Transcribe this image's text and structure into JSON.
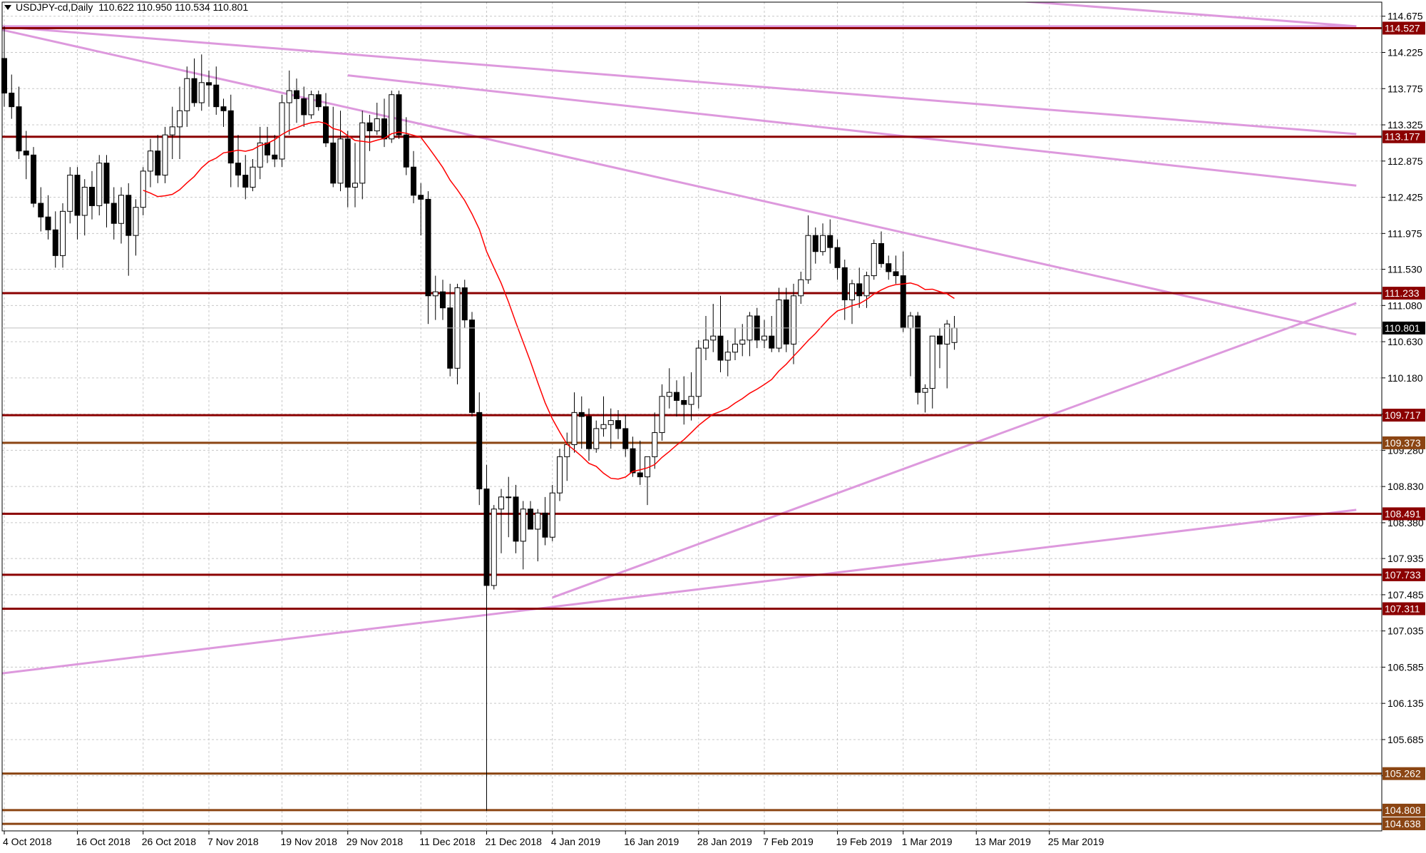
{
  "header": {
    "symbol_timeframe": "USDJPY-cd,Daily",
    "ohlc": "110.622 110.950 110.534 110.801"
  },
  "chart_data": {
    "type": "candlestick",
    "title": "USDJPY-cd,Daily",
    "xlabel": "",
    "ylabel": "",
    "ylim": [
      104.55,
      114.85
    ],
    "grid": true,
    "price_ticks": [
      "114.675",
      "114.225",
      "113.775",
      "113.325",
      "112.875",
      "112.425",
      "111.975",
      "111.530",
      "111.080",
      "110.630",
      "110.180",
      "109.730",
      "109.280",
      "108.830",
      "108.380",
      "107.935",
      "107.485",
      "107.035",
      "106.585",
      "106.135",
      "105.685",
      "105.235"
    ],
    "date_labels": [
      "4 Oct 2018",
      "16 Oct 2018",
      "26 Oct 2018",
      "7 Nov 2018",
      "19 Nov 2018",
      "29 Nov 2018",
      "11 Dec 2018",
      "21 Dec 2018",
      "4 Jan 2019",
      "16 Jan 2019",
      "28 Jan 2019",
      "7 Feb 2019",
      "19 Feb 2019",
      "1 Mar 2019",
      "13 Mar 2019",
      "25 Mar 2019"
    ],
    "date_label_bars": [
      0,
      10,
      19,
      28,
      38,
      47,
      57,
      66,
      75,
      85,
      95,
      104,
      114,
      123,
      133,
      143
    ],
    "current_price": "110.801",
    "horizontal_levels": [
      {
        "label": "114.527",
        "value": 114.527,
        "color": "#8b0000"
      },
      {
        "label": "113.177",
        "value": 113.177,
        "color": "#8b0000"
      },
      {
        "label": "111.233",
        "value": 111.233,
        "color": "#8b0000"
      },
      {
        "label": "109.717",
        "value": 109.717,
        "color": "#8b0000"
      },
      {
        "label": "109.373",
        "value": 109.373,
        "color": "#8b4513"
      },
      {
        "label": "108.491",
        "value": 108.491,
        "color": "#8b0000"
      },
      {
        "label": "107.733",
        "value": 107.733,
        "color": "#8b0000"
      },
      {
        "label": "107.311",
        "value": 107.311,
        "color": "#8b0000"
      },
      {
        "label": "105.262",
        "value": 105.262,
        "color": "#8b4513"
      },
      {
        "label": "104.808",
        "value": 104.808,
        "color": "#8b4513"
      },
      {
        "label": "104.638",
        "value": 104.638,
        "color": "#8b4513"
      }
    ],
    "trendlines": [
      {
        "from": [
          -1,
          114.55
        ],
        "to": [
          185,
          114.55
        ]
      },
      {
        "from": [
          132,
          114.91
        ],
        "to": [
          185,
          114.55
        ]
      },
      {
        "from": [
          -1,
          114.55
        ],
        "to": [
          185,
          113.21
        ]
      },
      {
        "from": [
          47,
          113.94
        ],
        "to": [
          185,
          112.57
        ]
      },
      {
        "from": [
          -1,
          114.52
        ],
        "to": [
          185,
          110.72
        ]
      },
      {
        "from": [
          -1,
          106.5
        ],
        "to": [
          185,
          108.54
        ]
      },
      {
        "from": [
          75,
          107.45
        ],
        "to": [
          185,
          111.11
        ]
      }
    ],
    "ma_period": 20,
    "ma_color": "#ff0000",
    "candles": [
      [
        114.15,
        114.55,
        113.55,
        113.72
      ],
      [
        113.72,
        113.95,
        113.4,
        113.55
      ],
      [
        113.55,
        113.8,
        112.9,
        113.0
      ],
      [
        113.0,
        113.25,
        112.65,
        112.95
      ],
      [
        112.95,
        113.05,
        112.3,
        112.35
      ],
      [
        112.35,
        112.55,
        112.0,
        112.18
      ],
      [
        112.18,
        112.45,
        111.9,
        112.02
      ],
      [
        112.02,
        112.25,
        111.55,
        111.7
      ],
      [
        111.7,
        112.35,
        111.55,
        112.25
      ],
      [
        112.25,
        112.8,
        112.1,
        112.7
      ],
      [
        112.7,
        112.8,
        111.9,
        112.2
      ],
      [
        112.2,
        112.65,
        111.95,
        112.55
      ],
      [
        112.55,
        112.75,
        112.15,
        112.32
      ],
      [
        112.32,
        112.95,
        112.2,
        112.85
      ],
      [
        112.85,
        112.95,
        112.05,
        112.35
      ],
      [
        112.35,
        112.55,
        111.9,
        112.1
      ],
      [
        112.1,
        112.55,
        111.85,
        112.45
      ],
      [
        112.45,
        112.6,
        111.45,
        111.95
      ],
      [
        111.95,
        112.4,
        111.7,
        112.3
      ],
      [
        112.3,
        112.8,
        112.2,
        112.75
      ],
      [
        112.75,
        113.15,
        112.55,
        113.0
      ],
      [
        113.0,
        113.2,
        112.6,
        112.7
      ],
      [
        112.7,
        113.3,
        112.6,
        113.2
      ],
      [
        113.2,
        113.55,
        112.9,
        113.3
      ],
      [
        113.3,
        113.8,
        112.9,
        113.5
      ],
      [
        113.5,
        114.05,
        113.3,
        113.9
      ],
      [
        113.9,
        114.15,
        113.55,
        113.6
      ],
      [
        113.6,
        114.2,
        113.5,
        113.85
      ],
      [
        113.85,
        114.0,
        113.55,
        113.82
      ],
      [
        113.82,
        114.05,
        113.45,
        113.55
      ],
      [
        113.55,
        113.65,
        113.3,
        113.5
      ],
      [
        113.5,
        113.7,
        112.55,
        112.85
      ],
      [
        112.85,
        113.2,
        112.55,
        112.7
      ],
      [
        112.7,
        112.95,
        112.4,
        112.55
      ],
      [
        112.55,
        112.9,
        112.5,
        112.8
      ],
      [
        112.8,
        113.3,
        112.65,
        113.1
      ],
      [
        113.1,
        113.3,
        112.85,
        112.95
      ],
      [
        112.95,
        113.2,
        112.8,
        112.9
      ],
      [
        112.9,
        113.7,
        112.8,
        113.6
      ],
      [
        113.6,
        114.0,
        113.2,
        113.75
      ],
      [
        113.75,
        113.9,
        113.35,
        113.65
      ],
      [
        113.65,
        113.8,
        113.3,
        113.45
      ],
      [
        113.45,
        113.75,
        113.4,
        113.7
      ],
      [
        113.7,
        113.75,
        113.5,
        113.55
      ],
      [
        113.55,
        113.72,
        113.05,
        113.1
      ],
      [
        113.1,
        113.55,
        112.55,
        112.6
      ],
      [
        112.6,
        113.5,
        112.5,
        113.15
      ],
      [
        113.15,
        113.25,
        112.3,
        112.55
      ],
      [
        112.55,
        113.1,
        112.3,
        112.6
      ],
      [
        112.6,
        113.5,
        112.4,
        113.35
      ],
      [
        113.35,
        113.45,
        113.0,
        113.25
      ],
      [
        113.25,
        113.6,
        113.2,
        113.4
      ],
      [
        113.4,
        113.65,
        113.05,
        113.15
      ],
      [
        113.15,
        113.75,
        113.1,
        113.7
      ],
      [
        113.7,
        113.75,
        113.15,
        113.2
      ],
      [
        113.2,
        113.42,
        112.7,
        112.8
      ],
      [
        112.8,
        113.0,
        112.35,
        112.45
      ],
      [
        112.45,
        112.6,
        111.95,
        112.4
      ],
      [
        112.4,
        112.5,
        110.85,
        111.2
      ],
      [
        111.2,
        111.45,
        110.9,
        111.25
      ],
      [
        111.25,
        111.4,
        110.9,
        111.05
      ],
      [
        111.05,
        111.35,
        110.2,
        110.3
      ],
      [
        110.3,
        111.35,
        110.1,
        111.3
      ],
      [
        111.3,
        111.4,
        110.8,
        110.9
      ],
      [
        110.9,
        111.0,
        109.7,
        109.75
      ],
      [
        109.75,
        110.0,
        108.6,
        108.8
      ],
      [
        108.8,
        109.1,
        104.8,
        107.6
      ],
      [
        107.6,
        108.6,
        107.55,
        108.55
      ],
      [
        108.55,
        108.8,
        108.0,
        108.7
      ],
      [
        108.7,
        108.95,
        108.2,
        108.7
      ],
      [
        108.7,
        108.85,
        108.0,
        108.15
      ],
      [
        108.15,
        108.65,
        107.8,
        108.55
      ],
      [
        108.55,
        108.65,
        108.3,
        108.3
      ],
      [
        108.3,
        108.55,
        107.9,
        108.5
      ],
      [
        108.5,
        108.7,
        108.1,
        108.2
      ],
      [
        108.2,
        108.85,
        108.15,
        108.75
      ],
      [
        108.75,
        109.3,
        108.65,
        109.2
      ],
      [
        109.2,
        109.5,
        108.9,
        109.35
      ],
      [
        109.35,
        110.0,
        109.25,
        109.75
      ],
      [
        109.75,
        109.95,
        109.3,
        109.7
      ],
      [
        109.7,
        109.8,
        109.15,
        109.3
      ],
      [
        109.3,
        109.65,
        109.25,
        109.55
      ],
      [
        109.55,
        109.95,
        109.45,
        109.6
      ],
      [
        109.6,
        109.8,
        109.3,
        109.65
      ],
      [
        109.65,
        109.78,
        109.42,
        109.55
      ],
      [
        109.55,
        109.72,
        109.2,
        109.3
      ],
      [
        109.3,
        109.45,
        108.95,
        109.0
      ],
      [
        109.0,
        109.4,
        108.85,
        108.95
      ],
      [
        108.95,
        109.15,
        108.6,
        109.2
      ],
      [
        109.2,
        109.75,
        109.05,
        109.5
      ],
      [
        109.5,
        110.1,
        109.4,
        109.95
      ],
      [
        109.95,
        110.3,
        109.8,
        110.0
      ],
      [
        110.0,
        110.15,
        109.7,
        109.9
      ],
      [
        109.9,
        110.2,
        109.6,
        109.85
      ],
      [
        109.85,
        110.25,
        109.65,
        109.95
      ],
      [
        109.95,
        110.65,
        109.8,
        110.55
      ],
      [
        110.55,
        110.95,
        110.4,
        110.65
      ],
      [
        110.65,
        111.1,
        110.5,
        110.7
      ],
      [
        110.7,
        111.2,
        110.25,
        110.4
      ],
      [
        110.4,
        110.65,
        110.2,
        110.5
      ],
      [
        110.5,
        110.8,
        110.4,
        110.6
      ],
      [
        110.6,
        110.85,
        110.45,
        110.65
      ],
      [
        110.65,
        111.0,
        110.45,
        110.95
      ],
      [
        110.95,
        111.05,
        110.55,
        110.65
      ],
      [
        110.65,
        110.9,
        110.55,
        110.7
      ],
      [
        110.7,
        110.95,
        110.5,
        110.55
      ],
      [
        110.55,
        111.3,
        110.5,
        111.15
      ],
      [
        111.15,
        111.3,
        110.5,
        110.6
      ],
      [
        110.6,
        111.35,
        110.35,
        111.2
      ],
      [
        111.2,
        111.5,
        111.1,
        111.4
      ],
      [
        111.4,
        112.2,
        111.35,
        111.95
      ],
      [
        111.95,
        112.05,
        111.6,
        111.75
      ],
      [
        111.75,
        112.1,
        111.7,
        111.95
      ],
      [
        111.95,
        112.15,
        111.6,
        111.8
      ],
      [
        111.8,
        111.9,
        111.4,
        111.55
      ],
      [
        111.55,
        111.65,
        110.9,
        111.15
      ],
      [
        111.15,
        111.4,
        110.85,
        111.35
      ],
      [
        111.35,
        111.55,
        111.05,
        111.2
      ],
      [
        111.2,
        111.5,
        111.05,
        111.45
      ],
      [
        111.45,
        111.9,
        111.4,
        111.85
      ],
      [
        111.85,
        112.0,
        111.55,
        111.6
      ],
      [
        111.6,
        111.7,
        111.4,
        111.5
      ],
      [
        111.5,
        111.7,
        111.35,
        111.45
      ],
      [
        111.45,
        111.75,
        110.75,
        110.8
      ],
      [
        110.8,
        111.0,
        110.2,
        110.95
      ],
      [
        110.95,
        111.0,
        109.85,
        110.0
      ],
      [
        110.0,
        110.1,
        109.75,
        110.05
      ],
      [
        110.05,
        110.7,
        109.8,
        110.7
      ],
      [
        110.7,
        110.8,
        110.3,
        110.6
      ],
      [
        110.6,
        110.9,
        110.05,
        110.85
      ],
      [
        110.62,
        110.95,
        110.53,
        110.8
      ]
    ]
  }
}
